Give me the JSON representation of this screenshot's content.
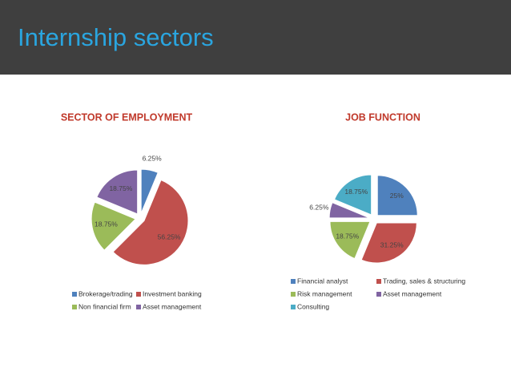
{
  "slide_title": "Internship sectors",
  "chart_data": [
    {
      "type": "pie",
      "title": "SECTOR OF EMPLOYMENT",
      "categories": [
        "Brokerage/trading",
        "Investment banking",
        "Non financial firm",
        "Asset management"
      ],
      "values": [
        6.25,
        56.25,
        18.75,
        18.75
      ],
      "value_labels": [
        "6.25%",
        "56.25%",
        "18.75%",
        "18.75%"
      ],
      "colors": [
        "#4f81bd",
        "#c0504d",
        "#9bbb59",
        "#8064a2"
      ]
    },
    {
      "type": "pie",
      "title": "JOB FUNCTION",
      "categories": [
        "Financial analyst",
        "Trading, sales & structuring",
        "Risk management",
        "Asset management",
        "Consulting"
      ],
      "values": [
        25,
        31.25,
        18.75,
        6.25,
        18.75
      ],
      "value_labels": [
        "25%",
        "31.25%",
        "18.75%",
        "6.25%",
        "18.75%"
      ],
      "colors": [
        "#4f81bd",
        "#c0504d",
        "#9bbb59",
        "#8064a2",
        "#4bacc6"
      ]
    }
  ]
}
